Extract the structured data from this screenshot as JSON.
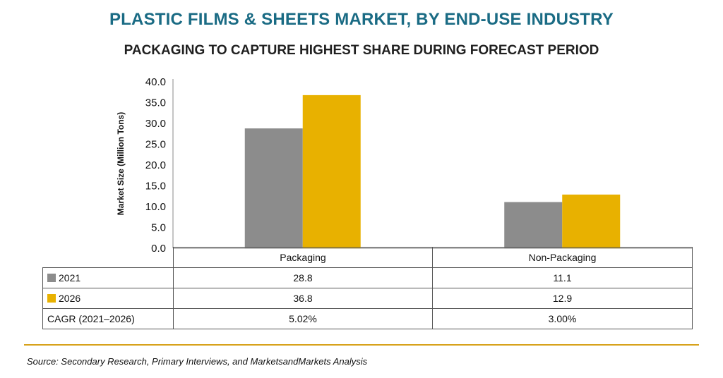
{
  "chart_data": {
    "type": "bar",
    "title": "PLASTIC FILMS & SHEETS MARKET, BY END-USE INDUSTRY",
    "subtitle": "PACKAGING TO CAPTURE HIGHEST SHARE DURING FORECAST PERIOD",
    "ylabel": "Market Size (Million Tons)",
    "ylim": [
      0,
      40
    ],
    "yticks": [
      "40.0",
      "35.0",
      "30.0",
      "25.0",
      "20.0",
      "15.0",
      "10.0",
      "5.0",
      "0.0"
    ],
    "categories": [
      "Packaging",
      "Non-Packaging"
    ],
    "series": [
      {
        "name": "2021",
        "color": "#8c8c8c",
        "values": [
          28.8,
          11.1
        ],
        "labels": [
          "28.8",
          "11.1"
        ]
      },
      {
        "name": "2026",
        "color": "#e8b100",
        "values": [
          36.8,
          12.9
        ],
        "labels": [
          "36.8",
          "12.9"
        ]
      }
    ],
    "cagr": {
      "label": "CAGR (2021–2026)",
      "values": [
        "5.02%",
        "3.00%"
      ]
    },
    "grid": false,
    "legend": "in data table"
  },
  "source": "Source: Secondary Research, Primary Interviews, and MarketsandMarkets Analysis",
  "colors": {
    "title": "#1a6b84",
    "rule": "#d7a21b"
  }
}
